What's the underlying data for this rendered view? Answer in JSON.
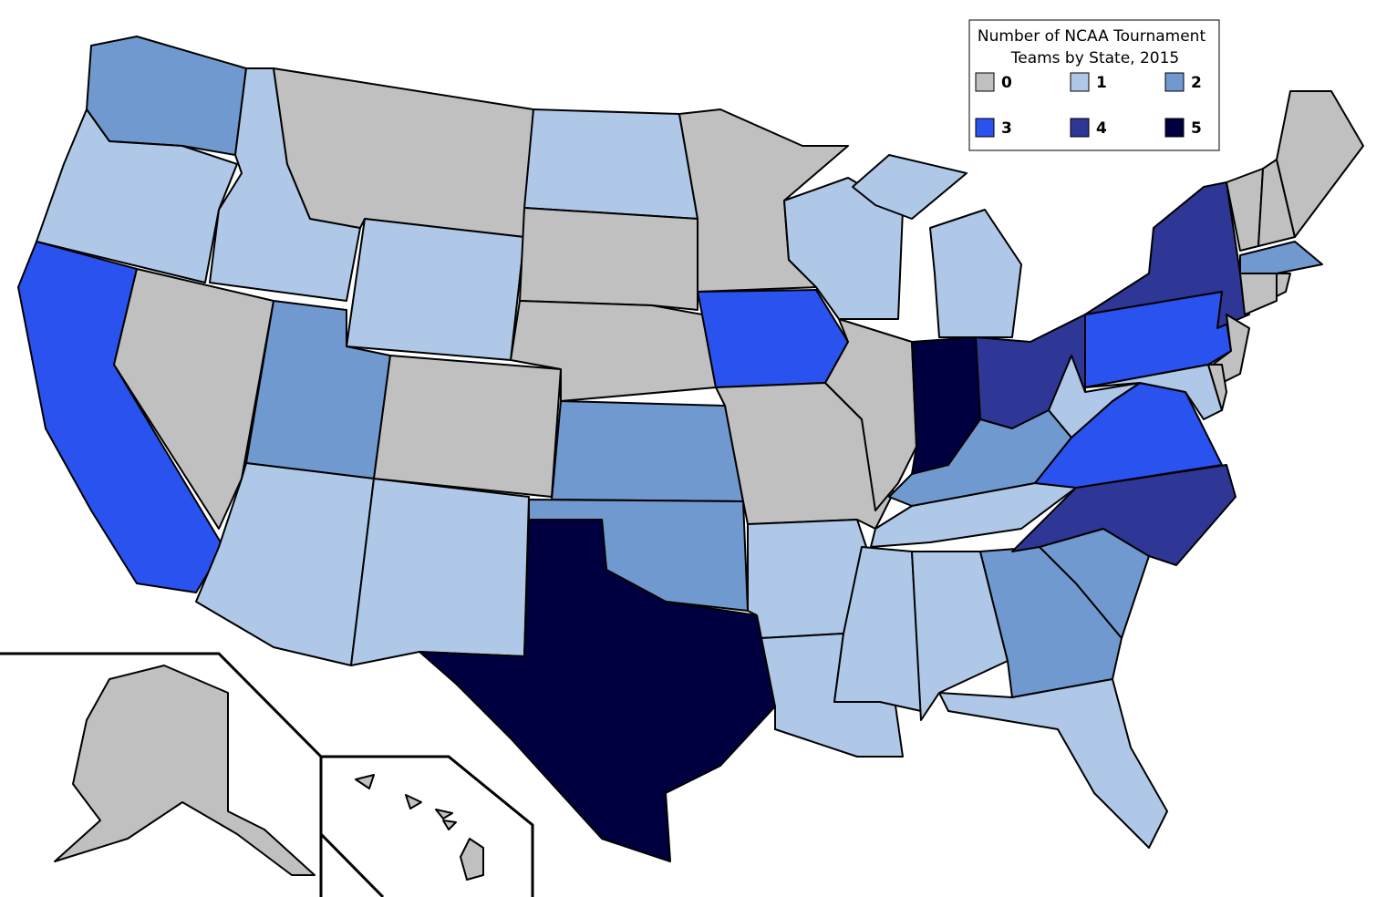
{
  "legend": {
    "title_lines": [
      "Number of NCAA Tournament",
      "Teams by State, 2015"
    ],
    "items": [
      {
        "value": 0,
        "color": "#c0c0c0"
      },
      {
        "value": 1,
        "color": "#b0c8e8"
      },
      {
        "value": 2,
        "color": "#7099d0"
      },
      {
        "value": 3,
        "color": "#2a52ee"
      },
      {
        "value": 4,
        "color": "#2e3696"
      },
      {
        "value": 5,
        "color": "#000040"
      }
    ]
  },
  "regions": [
    2,
    1,
    3,
    0,
    1,
    0,
    1,
    2,
    1,
    1,
    0,
    1,
    0,
    0,
    2,
    2,
    5,
    0,
    3,
    0,
    1,
    1,
    1,
    0,
    1,
    5,
    4,
    2,
    1,
    1,
    1,
    2,
    1,
    2,
    4,
    3,
    1,
    3,
    4,
    0,
    1,
    0,
    0,
    0,
    0,
    2,
    0,
    0,
    0,
    0
  ]
}
